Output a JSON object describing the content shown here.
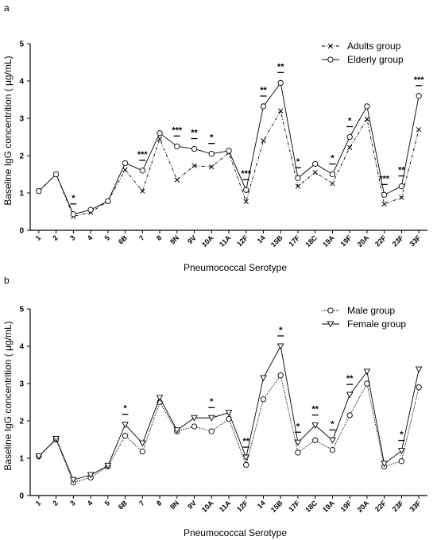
{
  "chart_data": [
    {
      "panel": "a",
      "type": "line",
      "categories": [
        "1",
        "2",
        "3",
        "4",
        "5",
        "6B",
        "7",
        "8",
        "9N",
        "9V",
        "10A",
        "11A",
        "12F",
        "14",
        "15B",
        "17F",
        "18C",
        "19A",
        "19F",
        "20A",
        "22F",
        "23F",
        "33F"
      ],
      "xlabel": "Pneumococcal Serotype",
      "ylabel": "Baseline IgG concentrition ( μg/mL)",
      "ylim": [
        0,
        5
      ],
      "yticks": [
        "0",
        "1",
        "2",
        "3",
        "4",
        "5"
      ],
      "grid": false,
      "legend_position": "top-right",
      "series": [
        {
          "name": "Adults group",
          "marker": "x",
          "line": "dashdot",
          "values": [
            1.05,
            1.5,
            0.37,
            0.48,
            0.78,
            1.62,
            1.05,
            2.45,
            1.35,
            1.73,
            1.7,
            2.08,
            0.77,
            2.4,
            3.2,
            1.18,
            1.55,
            1.25,
            2.22,
            2.98,
            0.7,
            0.88,
            2.7
          ]
        },
        {
          "name": "Elderly group",
          "marker": "circle",
          "line": "solid",
          "values": [
            1.05,
            1.5,
            0.43,
            0.55,
            0.78,
            1.8,
            1.6,
            2.6,
            2.25,
            2.18,
            2.05,
            2.13,
            1.08,
            3.32,
            3.95,
            1.4,
            1.78,
            1.5,
            2.5,
            3.32,
            0.95,
            1.18,
            3.6
          ]
        }
      ],
      "significance": [
        {
          "category": "3",
          "stars": "*"
        },
        {
          "category": "7",
          "stars": "***"
        },
        {
          "category": "9N",
          "stars": "***"
        },
        {
          "category": "9V",
          "stars": "**"
        },
        {
          "category": "10A",
          "stars": "*"
        },
        {
          "category": "12F",
          "stars": "***"
        },
        {
          "category": "14",
          "stars": "**"
        },
        {
          "category": "15B",
          "stars": "**"
        },
        {
          "category": "17F",
          "stars": "*"
        },
        {
          "category": "19A",
          "stars": "*"
        },
        {
          "category": "19F",
          "stars": "*"
        },
        {
          "category": "22F",
          "stars": "***"
        },
        {
          "category": "23F",
          "stars": "**"
        },
        {
          "category": "33F",
          "stars": "***"
        }
      ]
    },
    {
      "panel": "b",
      "type": "line",
      "categories": [
        "1",
        "2",
        "3",
        "4",
        "5",
        "6B",
        "7",
        "8",
        "9N",
        "9V",
        "10A",
        "11A",
        "12F",
        "14",
        "15B",
        "17F",
        "18C",
        "19A",
        "19F",
        "20A",
        "22F",
        "23F",
        "33F"
      ],
      "xlabel": "Pneumococcal Serotype",
      "ylabel": "Baseline IgG concentrition ( μg/mL)",
      "ylim": [
        0,
        5
      ],
      "yticks": [
        "0",
        "1",
        "2",
        "3",
        "4",
        "5"
      ],
      "grid": false,
      "legend_position": "top-right",
      "series": [
        {
          "name": "Male group",
          "marker": "circle",
          "line": "dotted",
          "values": [
            1.05,
            1.5,
            0.35,
            0.48,
            0.78,
            1.6,
            1.18,
            2.5,
            1.72,
            1.85,
            1.72,
            2.05,
            0.82,
            2.58,
            3.22,
            1.15,
            1.48,
            1.22,
            2.15,
            3.0,
            0.78,
            0.92,
            2.9
          ]
        },
        {
          "name": "Female group",
          "marker": "triangle-down",
          "line": "solid",
          "values": [
            1.05,
            1.52,
            0.42,
            0.55,
            0.8,
            1.9,
            1.4,
            2.62,
            1.75,
            2.08,
            2.08,
            2.22,
            1.02,
            3.15,
            4.0,
            1.42,
            1.88,
            1.48,
            2.7,
            3.32,
            0.85,
            1.2,
            3.38
          ]
        }
      ],
      "significance": [
        {
          "category": "6B",
          "stars": "*"
        },
        {
          "category": "10A",
          "stars": "*"
        },
        {
          "category": "12F",
          "stars": "**"
        },
        {
          "category": "15B",
          "stars": "*"
        },
        {
          "category": "17F",
          "stars": "*"
        },
        {
          "category": "18C",
          "stars": "**"
        },
        {
          "category": "19A",
          "stars": "*"
        },
        {
          "category": "19F",
          "stars": "**"
        },
        {
          "category": "23F",
          "stars": "*"
        }
      ]
    }
  ]
}
